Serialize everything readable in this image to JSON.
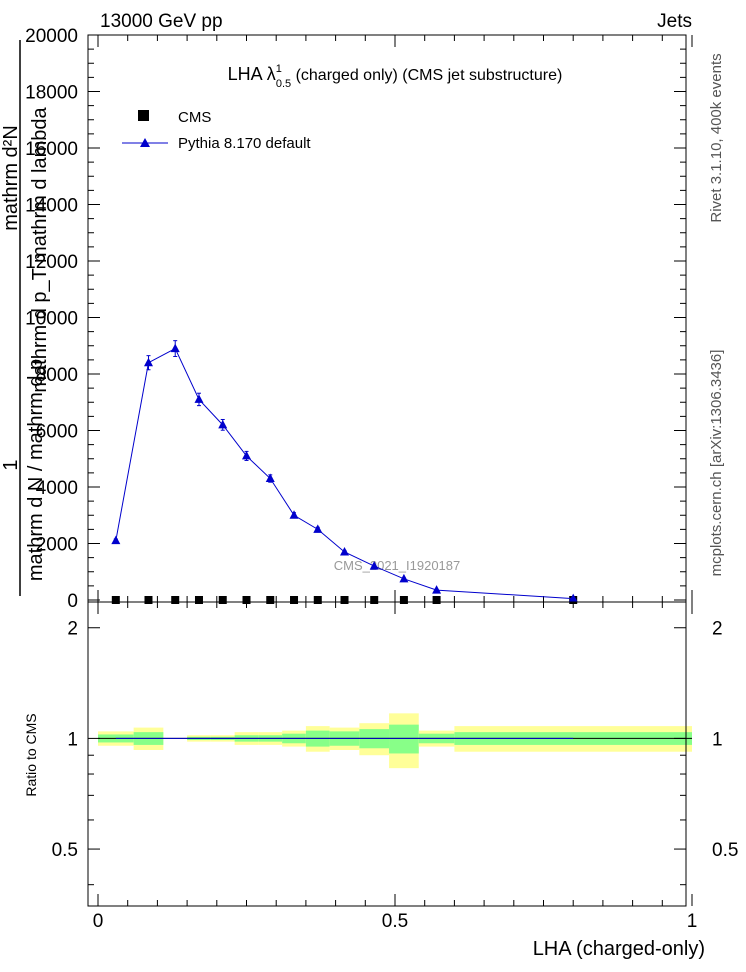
{
  "header": {
    "left": "13000 GeV pp",
    "right": "Jets"
  },
  "side_labels": {
    "rivet": "Rivet 3.1.10,  400k events",
    "mcplots": "mcplots.cern.ch [arXiv:1306.3436]"
  },
  "chart_data": [
    {
      "type": "scatter",
      "title": {
        "prefix": "LHA λ",
        "superscript": "1",
        "subscript": "0.5",
        "suffix": " (charged only) (CMS jet substructure)"
      },
      "ylabel": {
        "numerator": "mathrm d²N",
        "denominator": "mathrm d p_T mathrm d lambda",
        "stacked": [
          "1",
          "mathrm d N / mathrm d p",
          "T",
          "mathrm d p",
          "T",
          "mathrm d lambda"
        ]
      },
      "yticks": [
        "0",
        "2000",
        "4000",
        "6000",
        "8000",
        "10000",
        "12000",
        "14000",
        "16000",
        "18000",
        "20000"
      ],
      "ylim": [
        0,
        20000
      ],
      "xlim": [
        0,
        1
      ],
      "watermark": "CMS_2021_I1920187",
      "legend": {
        "position": "top-left",
        "entries": [
          {
            "label": "CMS",
            "marker": "square",
            "color": "#000000"
          },
          {
            "label": "Pythia 8.170 default",
            "marker": "triangle",
            "color": "#0000cc"
          }
        ]
      },
      "series": [
        {
          "name": "CMS",
          "x": [
            0.03,
            0.085,
            0.13,
            0.17,
            0.21,
            0.25,
            0.29,
            0.33,
            0.37,
            0.415,
            0.465,
            0.515,
            0.57,
            0.8
          ],
          "y": [
            0,
            0,
            0,
            0,
            0,
            0,
            0,
            0,
            0,
            0,
            0,
            0,
            0,
            0
          ]
        },
        {
          "name": "Pythia 8.170 default",
          "x": [
            0.03,
            0.085,
            0.13,
            0.17,
            0.21,
            0.25,
            0.29,
            0.33,
            0.37,
            0.415,
            0.465,
            0.515,
            0.57,
            0.8
          ],
          "y": [
            2100,
            8400,
            8900,
            7100,
            6200,
            5100,
            4300,
            3000,
            2500,
            1700,
            1200,
            750,
            350,
            50
          ],
          "yerr": [
            60,
            250,
            280,
            220,
            190,
            160,
            130,
            90,
            75,
            55,
            40,
            30,
            15,
            5
          ]
        }
      ]
    },
    {
      "type": "scatter",
      "ylabel": "Ratio to CMS",
      "xlabel": "LHA (charged-only)",
      "xticks": [
        "0",
        "0.5",
        "1"
      ],
      "yticks": [
        "0.5",
        "1",
        "2"
      ],
      "ylim": [
        0.35,
        2.35
      ],
      "xlim": [
        0,
        1
      ],
      "bands": {
        "edges": [
          0.0,
          0.06,
          0.11,
          0.15,
          0.19,
          0.23,
          0.27,
          0.31,
          0.35,
          0.39,
          0.44,
          0.49,
          0.54,
          0.6,
          1.0
        ],
        "outer": [
          0.045,
          0.07,
          0.0,
          0.02,
          0.02,
          0.04,
          0.04,
          0.05,
          0.08,
          0.07,
          0.1,
          0.17,
          0.05,
          0.08
        ],
        "inner": [
          0.025,
          0.04,
          0.0,
          0.01,
          0.01,
          0.02,
          0.02,
          0.03,
          0.05,
          0.045,
          0.06,
          0.09,
          0.03,
          0.04
        ],
        "outer_color": "#ffff99",
        "inner_color": "#88ff88"
      },
      "series": [
        {
          "name": "Pythia 8.170 default",
          "x": [
            0.03,
            0.085,
            0.13,
            0.17,
            0.21,
            0.25,
            0.29,
            0.33,
            0.37,
            0.415,
            0.465,
            0.515,
            0.57,
            0.8
          ],
          "y": [
            1.0,
            1.0,
            1.0,
            1.0,
            1.0,
            1.0,
            1.0,
            1.0,
            1.0,
            1.0,
            1.0,
            1.0,
            1.0,
            1.0
          ]
        }
      ]
    }
  ]
}
